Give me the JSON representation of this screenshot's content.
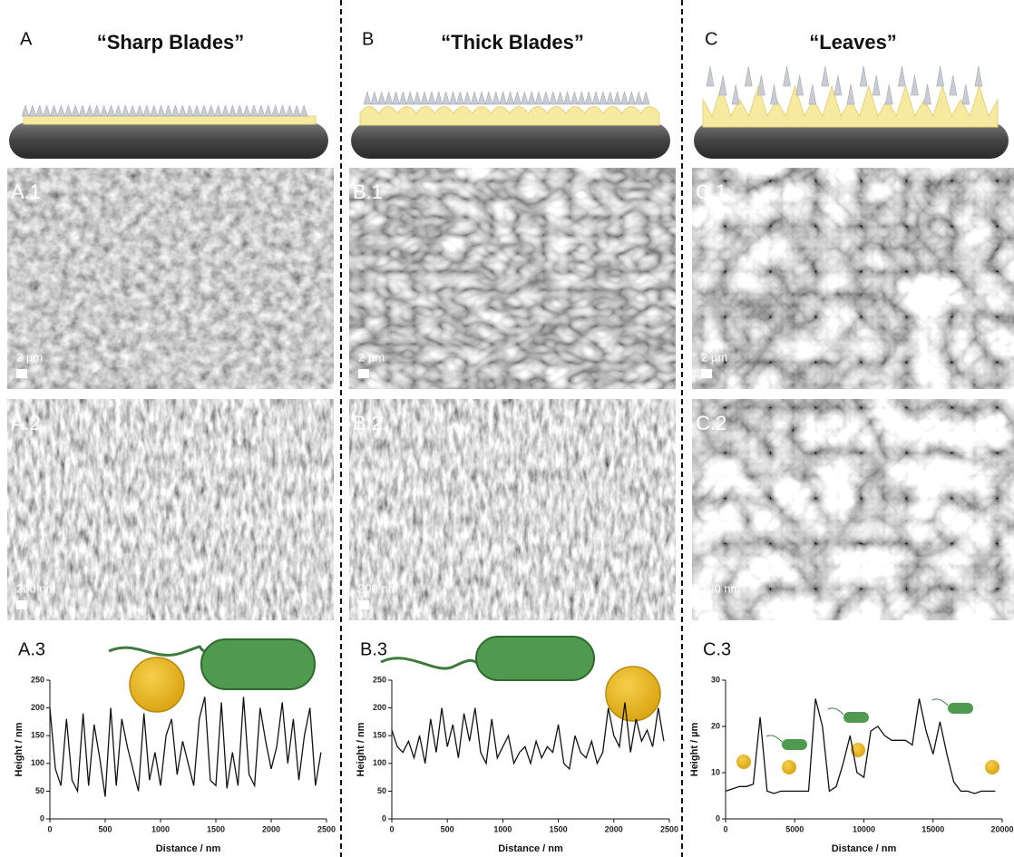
{
  "panels": [
    {
      "letter": "A",
      "title": "“Sharp Blades”",
      "images": [
        {
          "label": "A.1",
          "scale": "2 µm"
        },
        {
          "label": "A.2",
          "scale": "200 nm"
        }
      ],
      "profile_label": "A.3"
    },
    {
      "letter": "B",
      "title": "“Thick Blades”",
      "images": [
        {
          "label": "B.1",
          "scale": "2 µm"
        },
        {
          "label": "B.2",
          "scale": "200 nm"
        }
      ],
      "profile_label": "B.3"
    },
    {
      "letter": "C",
      "title": "“Leaves”",
      "images": [
        {
          "label": "C.1",
          "scale": "2 µm"
        },
        {
          "label": "C.2",
          "scale": "200 nm"
        }
      ],
      "profile_label": "C.3"
    }
  ],
  "chart_data": [
    {
      "type": "line",
      "x_label": "Distance / nm",
      "y_label": "Height / nm",
      "x": [
        0,
        50,
        100,
        150,
        200,
        250,
        300,
        350,
        400,
        450,
        500,
        550,
        600,
        650,
        700,
        750,
        800,
        850,
        900,
        950,
        1000,
        1050,
        1100,
        1150,
        1200,
        1250,
        1300,
        1350,
        1400,
        1450,
        1500,
        1550,
        1600,
        1650,
        1700,
        1750,
        1800,
        1850,
        1900,
        1950,
        2000,
        2050,
        2100,
        2150,
        2200,
        2250,
        2300,
        2350,
        2400,
        2450
      ],
      "series": [
        {
          "name": "A",
          "color": "#111111",
          "values": [
            200,
            90,
            60,
            180,
            70,
            50,
            190,
            60,
            170,
            110,
            40,
            200,
            60,
            180,
            130,
            90,
            50,
            190,
            70,
            120,
            60,
            150,
            180,
            80,
            140,
            100,
            60,
            180,
            220,
            70,
            60,
            210,
            55,
            120,
            60,
            220,
            80,
            60,
            200,
            140,
            90,
            130,
            210,
            100,
            180,
            70,
            150,
            200,
            60,
            120
          ]
        }
      ],
      "xlim": [
        0,
        2500
      ],
      "xticks": [
        0,
        500,
        1000,
        1500,
        2000,
        2500
      ],
      "ylim": [
        0,
        250
      ],
      "yticks": [
        0,
        50,
        100,
        150,
        200,
        250
      ]
    },
    {
      "type": "line",
      "x_label": "Distance / nm",
      "y_label": "Height / nm",
      "x": [
        0,
        50,
        100,
        150,
        200,
        250,
        300,
        350,
        400,
        450,
        500,
        550,
        600,
        650,
        700,
        750,
        800,
        850,
        900,
        950,
        1000,
        1050,
        1100,
        1150,
        1200,
        1250,
        1300,
        1350,
        1400,
        1450,
        1500,
        1550,
        1600,
        1650,
        1700,
        1750,
        1800,
        1850,
        1900,
        1950,
        2000,
        2050,
        2100,
        2150,
        2200,
        2250,
        2300,
        2350,
        2400,
        2450
      ],
      "series": [
        {
          "name": "B",
          "color": "#111111",
          "values": [
            160,
            130,
            120,
            140,
            110,
            150,
            100,
            180,
            120,
            200,
            130,
            170,
            110,
            190,
            140,
            200,
            120,
            100,
            180,
            110,
            130,
            150,
            100,
            120,
            130,
            100,
            140,
            110,
            130,
            120,
            170,
            100,
            90,
            150,
            120,
            110,
            140,
            100,
            120,
            200,
            150,
            130,
            210,
            120,
            180,
            140,
            160,
            130,
            200,
            140
          ]
        }
      ],
      "xlim": [
        0,
        2500
      ],
      "xticks": [
        0,
        500,
        1000,
        1500,
        2000,
        2500
      ],
      "ylim": [
        0,
        250
      ],
      "yticks": [
        0,
        50,
        100,
        150,
        200,
        250
      ]
    },
    {
      "type": "line",
      "x_label": "Distance / nm",
      "y_label": "Height / µm",
      "x": [
        0,
        500,
        1000,
        1500,
        2000,
        2500,
        3000,
        3500,
        4000,
        4500,
        5000,
        5500,
        6000,
        6500,
        7000,
        7500,
        8000,
        8500,
        9000,
        9500,
        10000,
        10500,
        11000,
        11500,
        12000,
        12500,
        13000,
        13500,
        14000,
        14500,
        15000,
        15500,
        16000,
        16500,
        17000,
        17500,
        18000,
        18500,
        19000,
        19500
      ],
      "series": [
        {
          "name": "C",
          "color": "#111111",
          "values": [
            6,
            6.5,
            7,
            7,
            7.5,
            22,
            6,
            5.5,
            6,
            6,
            6,
            6,
            6,
            26,
            20,
            6,
            7,
            12,
            18,
            10,
            9,
            19,
            20,
            18,
            17,
            17,
            17,
            16,
            26,
            19,
            14,
            21,
            14,
            8,
            6,
            6,
            5.5,
            6,
            6,
            6
          ]
        }
      ],
      "xlim": [
        0,
        20000
      ],
      "xticks": [
        0,
        5000,
        10000,
        15000,
        20000
      ],
      "ylim": [
        0,
        30
      ],
      "yticks": [
        0,
        10,
        20,
        30
      ]
    }
  ]
}
